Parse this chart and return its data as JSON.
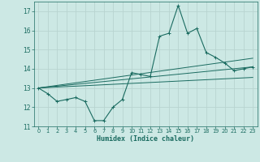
{
  "title": "",
  "xlabel": "Humidex (Indice chaleur)",
  "ylabel": "",
  "bg_color": "#cce8e4",
  "grid_color": "#b8d4d0",
  "line_color": "#1a6b60",
  "xlim": [
    -0.5,
    23.5
  ],
  "ylim": [
    11,
    17.5
  ],
  "yticks": [
    11,
    12,
    13,
    14,
    15,
    16,
    17
  ],
  "xticks": [
    0,
    1,
    2,
    3,
    4,
    5,
    6,
    7,
    8,
    9,
    10,
    11,
    12,
    13,
    14,
    15,
    16,
    17,
    18,
    19,
    20,
    21,
    22,
    23
  ],
  "line1_x": [
    0,
    1,
    2,
    3,
    4,
    5,
    6,
    7,
    8,
    9,
    10,
    11,
    12,
    13,
    14,
    15,
    16,
    17,
    18,
    19,
    20,
    21,
    22,
    23
  ],
  "line1_y": [
    13.0,
    12.7,
    12.3,
    12.4,
    12.5,
    12.3,
    11.3,
    11.3,
    12.0,
    12.4,
    13.8,
    13.7,
    13.6,
    15.7,
    15.85,
    17.3,
    15.85,
    16.1,
    14.85,
    14.6,
    14.3,
    13.9,
    14.0,
    14.1
  ],
  "line2_x": [
    0,
    23
  ],
  "line2_y": [
    13.0,
    14.1
  ],
  "line3_x": [
    0,
    23
  ],
  "line3_y": [
    13.0,
    13.55
  ],
  "line4_x": [
    0,
    23
  ],
  "line4_y": [
    13.0,
    14.55
  ]
}
